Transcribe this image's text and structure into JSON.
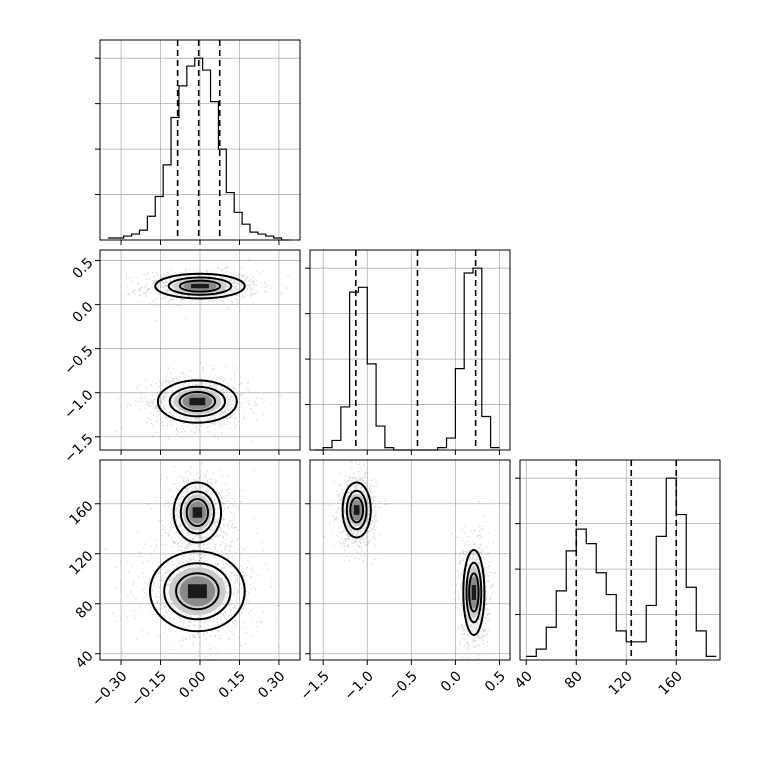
{
  "chart_data": {
    "type": "corner",
    "parameters": [
      {
        "name": "",
        "range": [
          -0.38,
          0.38
        ],
        "ticks": [
          -0.3,
          -0.15,
          0.0,
          0.15,
          0.3
        ],
        "tick_labels": [
          "−0.30",
          "−0.15",
          "0.00",
          "0.15",
          "0.30"
        ]
      },
      {
        "name": "",
        "range": [
          -1.65,
          0.62
        ],
        "ticks": [
          -1.5,
          -1.0,
          -0.5,
          0.0,
          0.5
        ],
        "tick_labels": [
          "−1.5",
          "−1.0",
          "−0.5",
          "0.0",
          "0.5"
        ]
      },
      {
        "name": "",
        "range": [
          35,
          195
        ],
        "ticks": [
          40,
          80,
          120,
          160
        ],
        "tick_labels": [
          "40",
          "80",
          "120",
          "160"
        ]
      }
    ],
    "diagonal_histograms": [
      {
        "param": 0,
        "bin_edges": [
          -0.35,
          -0.32,
          -0.29,
          -0.26,
          -0.23,
          -0.2,
          -0.17,
          -0.14,
          -0.11,
          -0.08,
          -0.05,
          -0.02,
          0.01,
          0.04,
          0.07,
          0.1,
          0.13,
          0.16,
          0.19,
          0.22,
          0.25,
          0.28,
          0.31,
          0.34
        ],
        "counts": [
          1,
          1,
          2,
          3,
          5,
          12,
          22,
          38,
          62,
          78,
          88,
          92,
          86,
          70,
          46,
          24,
          14,
          8,
          4,
          3,
          2,
          1,
          0
        ],
        "quantiles": [
          -0.085,
          -0.005,
          0.075
        ]
      },
      {
        "param": 1,
        "bin_edges": [
          -1.6,
          -1.5,
          -1.4,
          -1.3,
          -1.2,
          -1.1,
          -1.0,
          -0.9,
          -0.8,
          -0.7,
          -0.6,
          -0.5,
          -0.4,
          -0.3,
          -0.2,
          -0.1,
          0.0,
          0.1,
          0.2,
          0.3,
          0.4,
          0.5
        ],
        "counts": [
          0,
          1,
          4,
          18,
          66,
          68,
          36,
          10,
          1,
          0,
          0,
          0,
          0,
          0,
          1,
          5,
          34,
          74,
          76,
          14,
          1
        ],
        "quantiles": [
          -1.13,
          -0.43,
          0.23
        ]
      },
      {
        "param": 2,
        "bin_edges": [
          40,
          48,
          56,
          64,
          72,
          80,
          88,
          96,
          104,
          112,
          120,
          128,
          136,
          144,
          152,
          160,
          168,
          176,
          184,
          192
        ],
        "counts": [
          1,
          3,
          9,
          19,
          30,
          36,
          32,
          24,
          18,
          8,
          5,
          5,
          15,
          34,
          50,
          40,
          20,
          8,
          1
        ],
        "quantiles": [
          80,
          124,
          160
        ]
      }
    ],
    "joint_panels": [
      {
        "x_param": 0,
        "y_param": 1,
        "modes": [
          {
            "x": 0.0,
            "y": 0.21,
            "sx": 0.085,
            "sy": 0.07
          },
          {
            "x": -0.01,
            "y": -1.1,
            "sx": 0.075,
            "sy": 0.12
          }
        ]
      },
      {
        "x_param": 0,
        "y_param": 2,
        "modes": [
          {
            "x": -0.01,
            "y": 153,
            "sx": 0.045,
            "sy": 12
          },
          {
            "x": -0.01,
            "y": 90,
            "sx": 0.09,
            "sy": 16
          }
        ]
      },
      {
        "x_param": 1,
        "y_param": 2,
        "modes": [
          {
            "x": -1.12,
            "y": 155,
            "sx": 0.08,
            "sy": 11
          },
          {
            "x": 0.21,
            "y": 89,
            "sx": 0.06,
            "sy": 17
          }
        ]
      }
    ],
    "grid": true,
    "legend": "none"
  }
}
